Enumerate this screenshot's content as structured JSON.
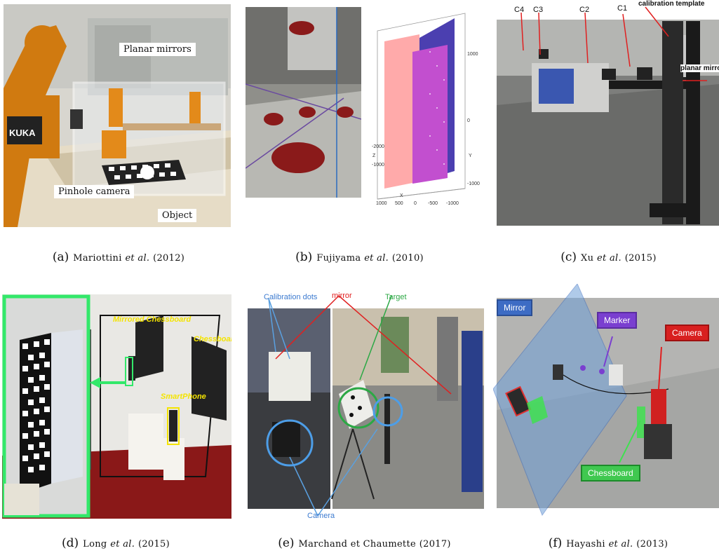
{
  "figures": [
    {
      "label": "(a)",
      "author": "Mariottini",
      "etal": "et al.",
      "year": "(2012)",
      "annotations": {
        "planar_mirrors": "Planar mirrors",
        "pinhole_camera": "Pinhole camera",
        "object": "Object",
        "kuka": "KUKA"
      }
    },
    {
      "label": "(b)",
      "author": "Fujiyama",
      "etal": "et al.",
      "year": "(2010)",
      "annotations": {
        "z_ticks": [
          "1000",
          "0",
          "-1000"
        ],
        "x_ticks": [
          "1000",
          "500",
          "0",
          "-500",
          "-1000"
        ],
        "y_ticks": [
          "-2000",
          "-1000"
        ],
        "x_axis": "X",
        "y_axis": "Y",
        "z_axis": "Z"
      }
    },
    {
      "label": "(c)",
      "author": "Xu",
      "etal": "et al.",
      "year": "(2015)",
      "annotations": {
        "c4": "C4",
        "c3": "C3",
        "c2": "C2",
        "c1": "C1",
        "calibration_template": "calibration template",
        "planar_mirror": "planar mirror"
      }
    },
    {
      "label": "(d)",
      "author": "Long",
      "etal": "et al.",
      "year": "(2015)",
      "annotations": {
        "mirrored_chessboard": "Mirrored Chessboard",
        "chessboard": "Chessboard",
        "smartphone": "SmartPhone"
      }
    },
    {
      "label": "(e)",
      "author": "Marchand et Chaumette",
      "etal": "",
      "year": "(2017)",
      "annotations": {
        "calibration_dots": "Calibration dots",
        "mirror": "mirror",
        "target": "Target",
        "camera": "Camera"
      }
    },
    {
      "label": "(f)",
      "author": "Hayashi",
      "etal": "et al.",
      "year": "(2013)",
      "annotations": {
        "mirror": "Mirror",
        "marker": "Marker",
        "camera": "Camera",
        "chessboard": "Chessboard"
      }
    }
  ]
}
